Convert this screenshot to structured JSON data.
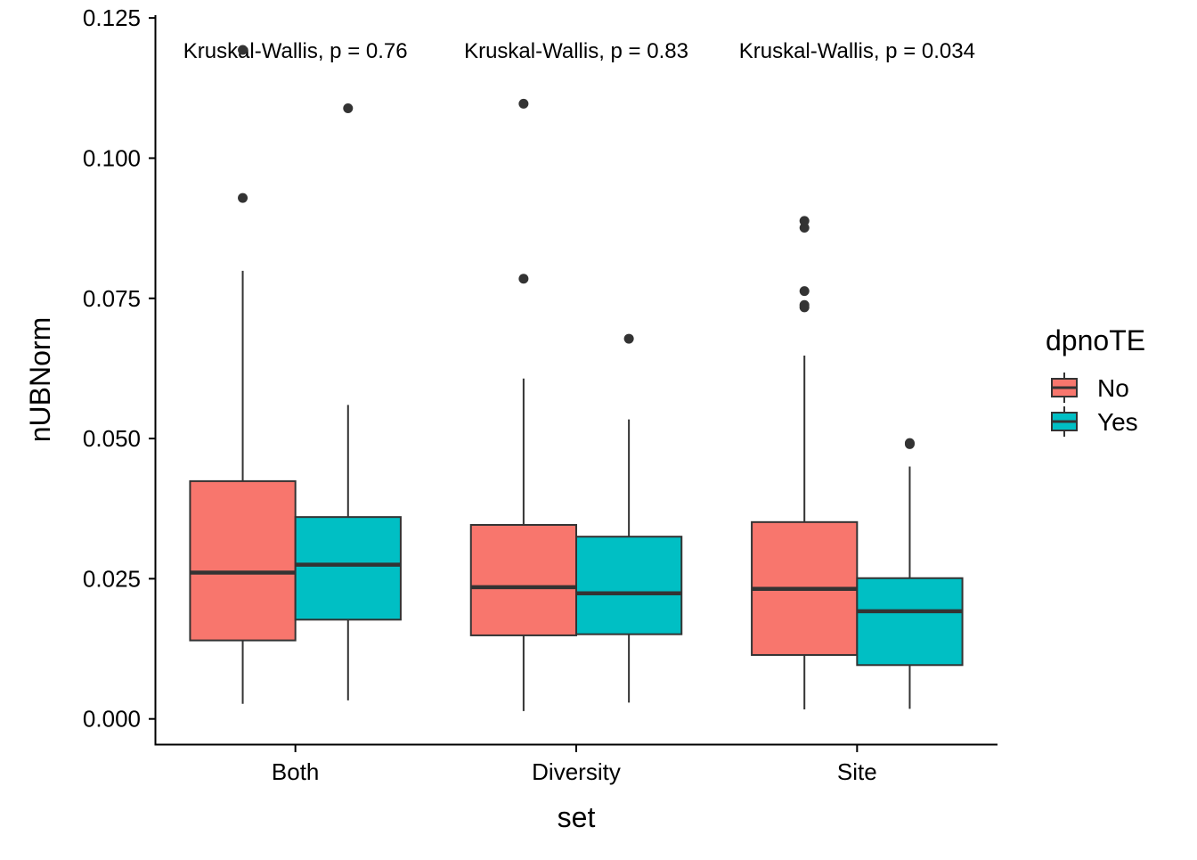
{
  "chart_data": {
    "type": "boxplot",
    "xlabel": "set",
    "ylabel": "nUBNorm",
    "categories": [
      "Both",
      "Diversity",
      "Site"
    ],
    "ylim": [
      -0.0045,
      0.1255
    ],
    "yticks": [
      "0.000",
      "0.025",
      "0.050",
      "0.075",
      "0.100",
      "0.125"
    ],
    "legend": {
      "title": "dpnoTE",
      "position": "right",
      "entries": [
        {
          "label": "No",
          "color": "#F8766D"
        },
        {
          "label": "Yes",
          "color": "#00BFC4"
        }
      ]
    },
    "series": [
      {
        "name": "No",
        "color": "#F8766D",
        "boxes": [
          {
            "category": "Both",
            "min": 0.0027,
            "q1": 0.014,
            "median": 0.0261,
            "q3": 0.0424,
            "max": 0.0799,
            "outliers": [
              0.0929,
              0.1193
            ]
          },
          {
            "category": "Diversity",
            "min": 0.0014,
            "q1": 0.0149,
            "median": 0.0235,
            "q3": 0.0346,
            "max": 0.0607,
            "outliers": [
              0.0785,
              0.1097
            ]
          },
          {
            "category": "Site",
            "min": 0.0017,
            "q1": 0.0114,
            "median": 0.0232,
            "q3": 0.0351,
            "max": 0.0648,
            "outliers": [
              0.0734,
              0.0738,
              0.0763,
              0.0876,
              0.0888
            ]
          }
        ]
      },
      {
        "name": "Yes",
        "color": "#00BFC4",
        "boxes": [
          {
            "category": "Both",
            "min": 0.0033,
            "q1": 0.0177,
            "median": 0.0275,
            "q3": 0.036,
            "max": 0.056,
            "outliers": [
              0.1089
            ]
          },
          {
            "category": "Diversity",
            "min": 0.0029,
            "q1": 0.0151,
            "median": 0.0224,
            "q3": 0.0325,
            "max": 0.0534,
            "outliers": [
              0.0678
            ]
          },
          {
            "category": "Site",
            "min": 0.0018,
            "q1": 0.0096,
            "median": 0.0192,
            "q3": 0.0251,
            "max": 0.045,
            "outliers": [
              0.049,
              0.0492
            ]
          }
        ]
      }
    ],
    "annotations": [
      {
        "category": "Both",
        "text": "Kruskal-Wallis, p = 0.76"
      },
      {
        "category": "Diversity",
        "text": "Kruskal-Wallis, p = 0.83"
      },
      {
        "category": "Site",
        "text": "Kruskal-Wallis, p = 0.034"
      }
    ]
  }
}
